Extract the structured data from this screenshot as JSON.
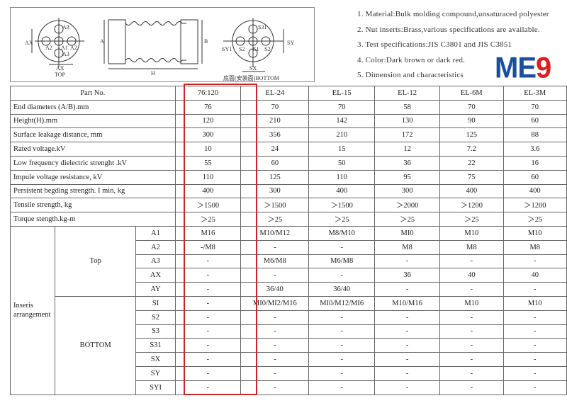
{
  "diagram": {
    "top_label": "TOP",
    "bottom_label": "底面(安装面)BOTTOM",
    "top_marks": [
      "A3",
      "A2",
      "A1",
      "A2",
      "A3",
      "AX",
      "AX"
    ],
    "side_marks": [
      "A",
      "B",
      "H"
    ],
    "bottom_marks": [
      "S31",
      "SY1",
      "S2",
      "S1",
      "S2",
      "SY",
      "SX"
    ]
  },
  "notes": [
    "1. Material:Bulk molding compound,unsaturaced polyester",
    "2. Nut inserts:Brass,various specifications are available.",
    "3. Test specifications:JIS C3801 and JIS C3851",
    "4. Color:Dark brown or dark red.",
    "5. Dimension and characteristics"
  ],
  "logo": {
    "text": "ME9",
    "colors": {
      "ME": "#1a4fa0",
      "9": "#e21b1b"
    }
  },
  "highlight_color": "#c8262b",
  "table": {
    "header": [
      "Part No.",
      "76:120",
      "EL-24",
      "EL-15",
      "EL-12",
      "EL-6M",
      "EL-3M"
    ],
    "rows": [
      [
        "End diameters (A/B).mm",
        "76",
        "70",
        "70",
        "58",
        "70",
        "70"
      ],
      [
        "Height(H).mm",
        "120",
        "210",
        "142",
        "130",
        "90",
        "60"
      ],
      [
        "Surface leakage distance, mm",
        "300",
        "356",
        "210",
        "172",
        "125",
        "88"
      ],
      [
        "Rated voltage.kV",
        "10",
        "24",
        "15",
        "12",
        "7.2",
        "3.6"
      ],
      [
        "Low frequency dielectric strenght .kV",
        "55",
        "60",
        "50",
        "36",
        "22",
        "16"
      ],
      [
        "Impule voltage resistance, kV",
        "110",
        "125",
        "110",
        "95",
        "75",
        "60"
      ],
      [
        "Persistent begding strength. I min, kg",
        "400",
        "300",
        "400",
        "300",
        "400",
        "400"
      ],
      [
        "Tensile strength, kg",
        "＞1500",
        "＞1500",
        "＞1500",
        "＞2000",
        "＞1200",
        "＞1200"
      ],
      [
        "Torque stength.kg-m",
        "＞25",
        "＞25",
        "＞25",
        "＞25",
        "＞25",
        "＞25"
      ]
    ],
    "group_label": "Inseris arrangement",
    "top_label": "Top",
    "bottom_label": "BOTTOM",
    "top_rows": [
      [
        "A1",
        "M16",
        "M10/M12",
        "M8/M10",
        "MI0",
        "M10",
        "M10"
      ],
      [
        "A2",
        "-/M8",
        "-",
        "-",
        "M8",
        "M8",
        "M8"
      ],
      [
        "A3",
        "-",
        "M6/M8",
        "M6/M8",
        "-",
        "-",
        "-"
      ],
      [
        "AX",
        "-",
        "-",
        "-",
        "36",
        "40",
        "40"
      ],
      [
        "AY",
        "-",
        "36/40",
        "36/40",
        "-",
        "-",
        "-"
      ]
    ],
    "bottom_rows": [
      [
        "SI",
        "-",
        "MI0/MI2/M16",
        "MI0/M12/MI6",
        "M10/M16",
        "M10",
        "M10"
      ],
      [
        "S2",
        "-",
        "-",
        "-",
        "-",
        "-",
        "-"
      ],
      [
        "S3",
        "-",
        "-",
        "-",
        "-",
        "-",
        "-"
      ],
      [
        "S31",
        "-",
        "-",
        "-",
        "-",
        "-",
        "-"
      ],
      [
        "SX",
        "-",
        "-",
        "-",
        "-",
        "-",
        "-"
      ],
      [
        "SY",
        "-",
        "-",
        "-",
        "-",
        "-",
        "-"
      ],
      [
        "SYI",
        "-",
        "-",
        "-",
        "-",
        "-",
        "-"
      ]
    ]
  }
}
